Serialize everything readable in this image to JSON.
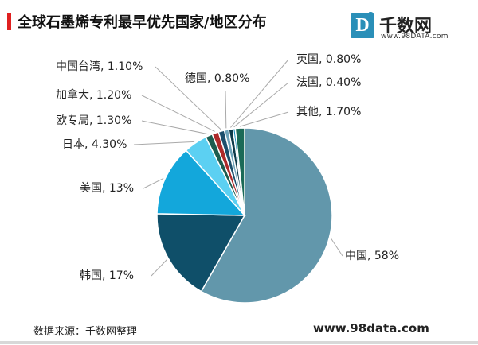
{
  "header": {
    "title": "全球石墨烯专利最早优先国家/地区分布",
    "accent_color": "#e02020"
  },
  "logo": {
    "badge_letter": "D",
    "badge_sup": "3",
    "name": "千数网",
    "domain": "www.98DATA.com",
    "color": "#2a8fb8"
  },
  "chart_data": {
    "type": "pie",
    "title": "全球石墨烯专利最早优先国家/地区分布",
    "slices": [
      {
        "name": "中国",
        "value": 58,
        "label": "中国, 58%",
        "color": "#6297ab"
      },
      {
        "name": "韩国",
        "value": 17,
        "label": "韩国, 17%",
        "color": "#0f4f69"
      },
      {
        "name": "美国",
        "value": 13,
        "label": "美国, 13%",
        "color": "#13a7db"
      },
      {
        "name": "日本",
        "value": 4.3,
        "label": "日本, 4.30%",
        "color": "#5cd0f2"
      },
      {
        "name": "欧专局",
        "value": 1.3,
        "label": "欧专局, 1.30%",
        "color": "#1d5c4f"
      },
      {
        "name": "加拿大",
        "value": 1.2,
        "label": "加拿大, 1.20%",
        "color": "#ad2a2a"
      },
      {
        "name": "中国台湾",
        "value": 1.1,
        "label": "中国台湾, 1.10%",
        "color": "#1c4f6c"
      },
      {
        "name": "德国",
        "value": 0.8,
        "label": "德国, 0.80%",
        "color": "#6fa5bb"
      },
      {
        "name": "英国",
        "value": 0.8,
        "label": "英国, 0.80%",
        "color": "#0d3a4a"
      },
      {
        "name": "法国",
        "value": 0.4,
        "label": "法国, 0.40%",
        "color": "#1790c0"
      },
      {
        "name": "其他",
        "value": 1.7,
        "label": "其他, 1.70%",
        "color": "#1b6a57"
      }
    ]
  },
  "footer": {
    "source": "数据来源：千数网整理",
    "website": "www.98data.com"
  }
}
